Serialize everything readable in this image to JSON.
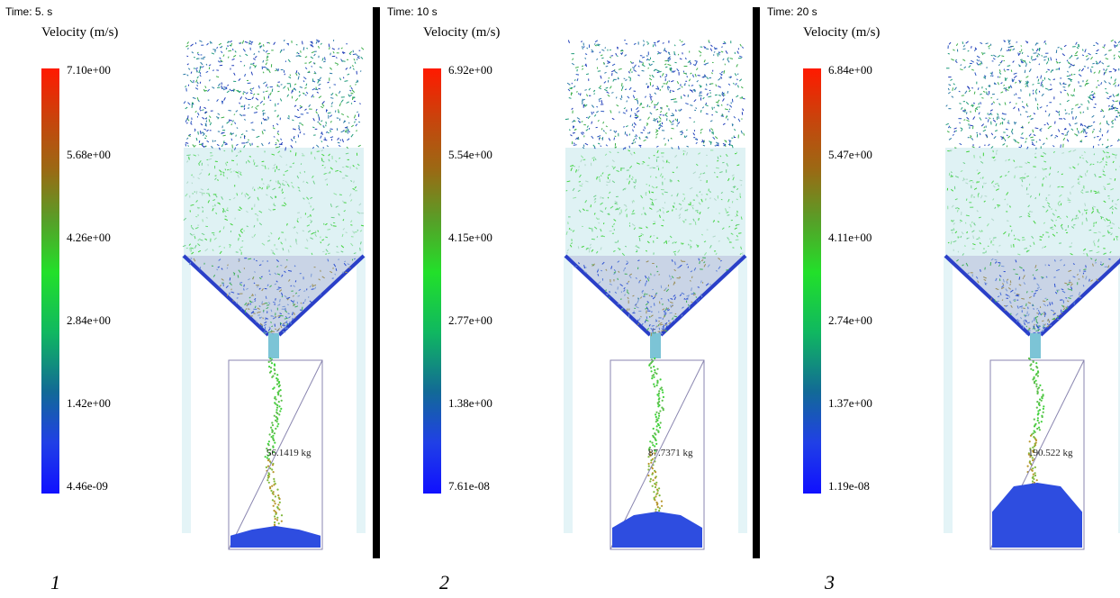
{
  "panels": [
    {
      "time": "Time: 5. s",
      "legend_title": "Velocity (m/s)",
      "ticks": [
        "7.10e+00",
        "5.68e+00",
        "4.26e+00",
        "2.84e+00",
        "1.42e+00",
        "4.46e-09"
      ],
      "mass": "56.1419 kg",
      "fill_level": 0.12,
      "label": "1"
    },
    {
      "time": "Time: 10 s",
      "legend_title": "Velocity (m/s)",
      "ticks": [
        "6.92e+00",
        "5.54e+00",
        "4.15e+00",
        "2.77e+00",
        "1.38e+00",
        "7.61e-08"
      ],
      "mass": "87.7371 kg",
      "fill_level": 0.2,
      "label": "2"
    },
    {
      "time": "Time: 20 s",
      "legend_title": "Velocity (m/s)",
      "ticks": [
        "6.84e+00",
        "5.47e+00",
        "4.11e+00",
        "2.74e+00",
        "1.37e+00",
        "1.19e-08"
      ],
      "mass": "190.522 kg",
      "fill_level": 0.36,
      "label": "3"
    }
  ],
  "colors": {
    "particles_top": "#1f3bb8",
    "particles_mid": "#3fd23a",
    "pile": "#2e4de0",
    "silo_fill": "#dff2f4"
  }
}
